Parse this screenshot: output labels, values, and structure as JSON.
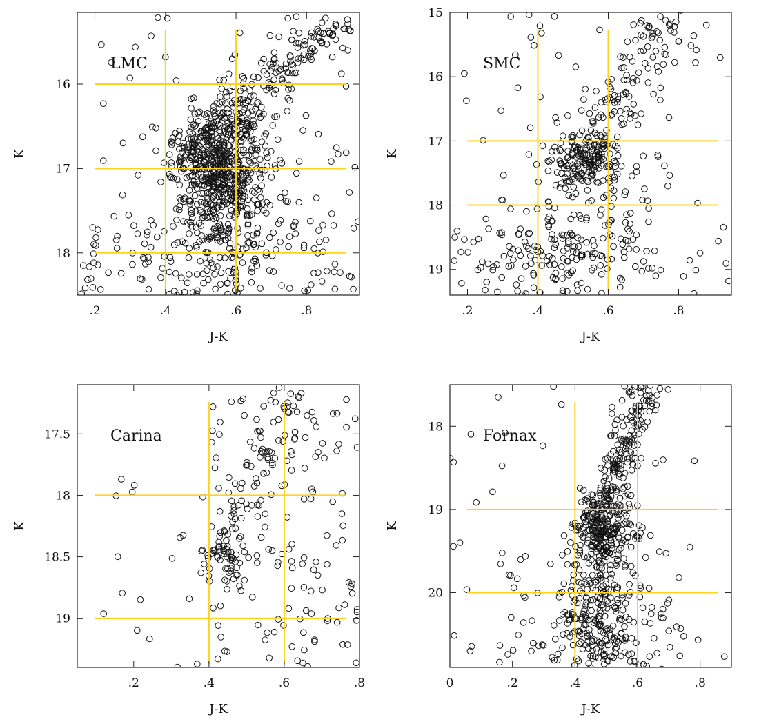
{
  "chart_data": [
    {
      "type": "scatter",
      "label": "LMC",
      "xlabel": "J-K",
      "ylabel": "K",
      "xlim": [
        0.15,
        0.95
      ],
      "ylim": [
        18.5,
        15.15
      ],
      "y_inverted": true,
      "x_ticks": [
        0.2,
        0.4,
        0.6,
        0.8
      ],
      "x_tick_labels": [
        ".2",
        ".4",
        ".6",
        ".8"
      ],
      "y_ticks": [
        16,
        17,
        18
      ],
      "y_tick_labels": [
        "16",
        "17",
        "18"
      ],
      "guide_lines": {
        "vertical": [
          0.4,
          0.6
        ],
        "horizontal": [
          16,
          17,
          18
        ],
        "color": "#ffd21f"
      },
      "populations": [
        {
          "cx": 0.55,
          "cy": 16.95,
          "sx": 0.065,
          "sy": 0.35,
          "n": 520
        },
        {
          "cx": 0.57,
          "cy": 17.7,
          "sx": 0.075,
          "sy": 0.55,
          "n": 180
        },
        {
          "x_from": 0.55,
          "y_from": 16.6,
          "x_to": 0.9,
          "y_to": 15.2,
          "spread": 0.045,
          "n": 170
        },
        {
          "x_range": [
            0.16,
            0.95
          ],
          "y_range": [
            15.2,
            18.5
          ],
          "n": 90
        },
        {
          "x_range": [
            0.16,
            0.95
          ],
          "y_range": [
            17.6,
            18.5
          ],
          "n": 110
        }
      ]
    },
    {
      "type": "scatter",
      "label": "SMC",
      "xlabel": "J-K",
      "ylabel": "K",
      "xlim": [
        0.15,
        0.95
      ],
      "ylim": [
        19.4,
        15.0
      ],
      "y_inverted": true,
      "x_ticks": [
        0.2,
        0.4,
        0.6,
        0.8
      ],
      "x_tick_labels": [
        ".2",
        ".4",
        ".6",
        ".8"
      ],
      "y_ticks": [
        15,
        16,
        17,
        18,
        19
      ],
      "y_tick_labels": [
        "15",
        "16",
        "17",
        "18",
        "19"
      ],
      "guide_lines": {
        "vertical": [
          0.4,
          0.6
        ],
        "horizontal": [
          17,
          18
        ],
        "color": "#ffd21f"
      },
      "populations": [
        {
          "cx": 0.54,
          "cy": 17.3,
          "sx": 0.05,
          "sy": 0.22,
          "n": 170
        },
        {
          "x_from": 0.55,
          "y_from": 17.0,
          "x_to": 0.78,
          "y_to": 15.05,
          "spread": 0.05,
          "n": 110
        },
        {
          "cx": 0.55,
          "cy": 18.4,
          "sx": 0.12,
          "sy": 0.55,
          "n": 150
        },
        {
          "x_range": [
            0.16,
            0.95
          ],
          "y_range": [
            15.0,
            19.4
          ],
          "n": 60
        },
        {
          "x_range": [
            0.16,
            0.6
          ],
          "y_range": [
            18.4,
            19.4
          ],
          "n": 70
        }
      ]
    },
    {
      "type": "scatter",
      "label": "Carina",
      "xlabel": "J-K",
      "ylabel": "K",
      "xlim": [
        0.05,
        0.8
      ],
      "ylim": [
        19.4,
        17.1
      ],
      "y_inverted": true,
      "x_ticks": [
        0.2,
        0.4,
        0.6,
        0.8
      ],
      "x_tick_labels": [
        ".2",
        ".4",
        ".6",
        ".8"
      ],
      "y_ticks": [
        17.5,
        18,
        18.5,
        19
      ],
      "y_tick_labels": [
        "17.5",
        "18",
        "18.5",
        "19"
      ],
      "guide_lines": {
        "vertical": [
          0.4,
          0.6
        ],
        "horizontal": [
          18,
          19
        ],
        "color": "#ffd21f"
      },
      "populations": [
        {
          "cx": 0.45,
          "cy": 18.52,
          "sx": 0.035,
          "sy": 0.12,
          "n": 60
        },
        {
          "x_from": 0.47,
          "y_from": 18.3,
          "x_to": 0.6,
          "y_to": 17.15,
          "spread": 0.04,
          "n": 60
        },
        {
          "x_range": [
            0.4,
            0.8
          ],
          "y_range": [
            17.2,
            19.4
          ],
          "n": 140
        },
        {
          "x_range": [
            0.1,
            0.4
          ],
          "y_range": [
            17.8,
            19.4
          ],
          "n": 18
        }
      ]
    },
    {
      "type": "scatter",
      "label": "Fornax",
      "xlabel": "J-K",
      "ylabel": "K",
      "xlim": [
        0.0,
        0.9
      ],
      "ylim": [
        20.9,
        17.5
      ],
      "y_inverted": true,
      "x_ticks": [
        0,
        0.2,
        0.4,
        0.6,
        0.8
      ],
      "x_tick_labels": [
        "0",
        ".2",
        ".4",
        ".6",
        ".8"
      ],
      "y_ticks": [
        18,
        19,
        20
      ],
      "y_tick_labels": [
        "18",
        "19",
        "20"
      ],
      "guide_lines": {
        "vertical": [
          0.4,
          0.6
        ],
        "horizontal": [
          19,
          20
        ],
        "color": "#ffd21f"
      },
      "populations": [
        {
          "cx": 0.49,
          "cy": 19.2,
          "sx": 0.045,
          "sy": 0.2,
          "n": 220
        },
        {
          "x_from": 0.5,
          "y_from": 19.0,
          "x_to": 0.62,
          "y_to": 17.5,
          "spread": 0.03,
          "n": 170
        },
        {
          "cx": 0.47,
          "cy": 20.2,
          "sx": 0.065,
          "sy": 0.45,
          "n": 260
        },
        {
          "x_range": [
            0.0,
            0.9
          ],
          "y_range": [
            17.5,
            20.9
          ],
          "n": 40
        },
        {
          "x_range": [
            0.15,
            0.75
          ],
          "y_range": [
            19.5,
            20.9
          ],
          "n": 80
        }
      ]
    }
  ]
}
